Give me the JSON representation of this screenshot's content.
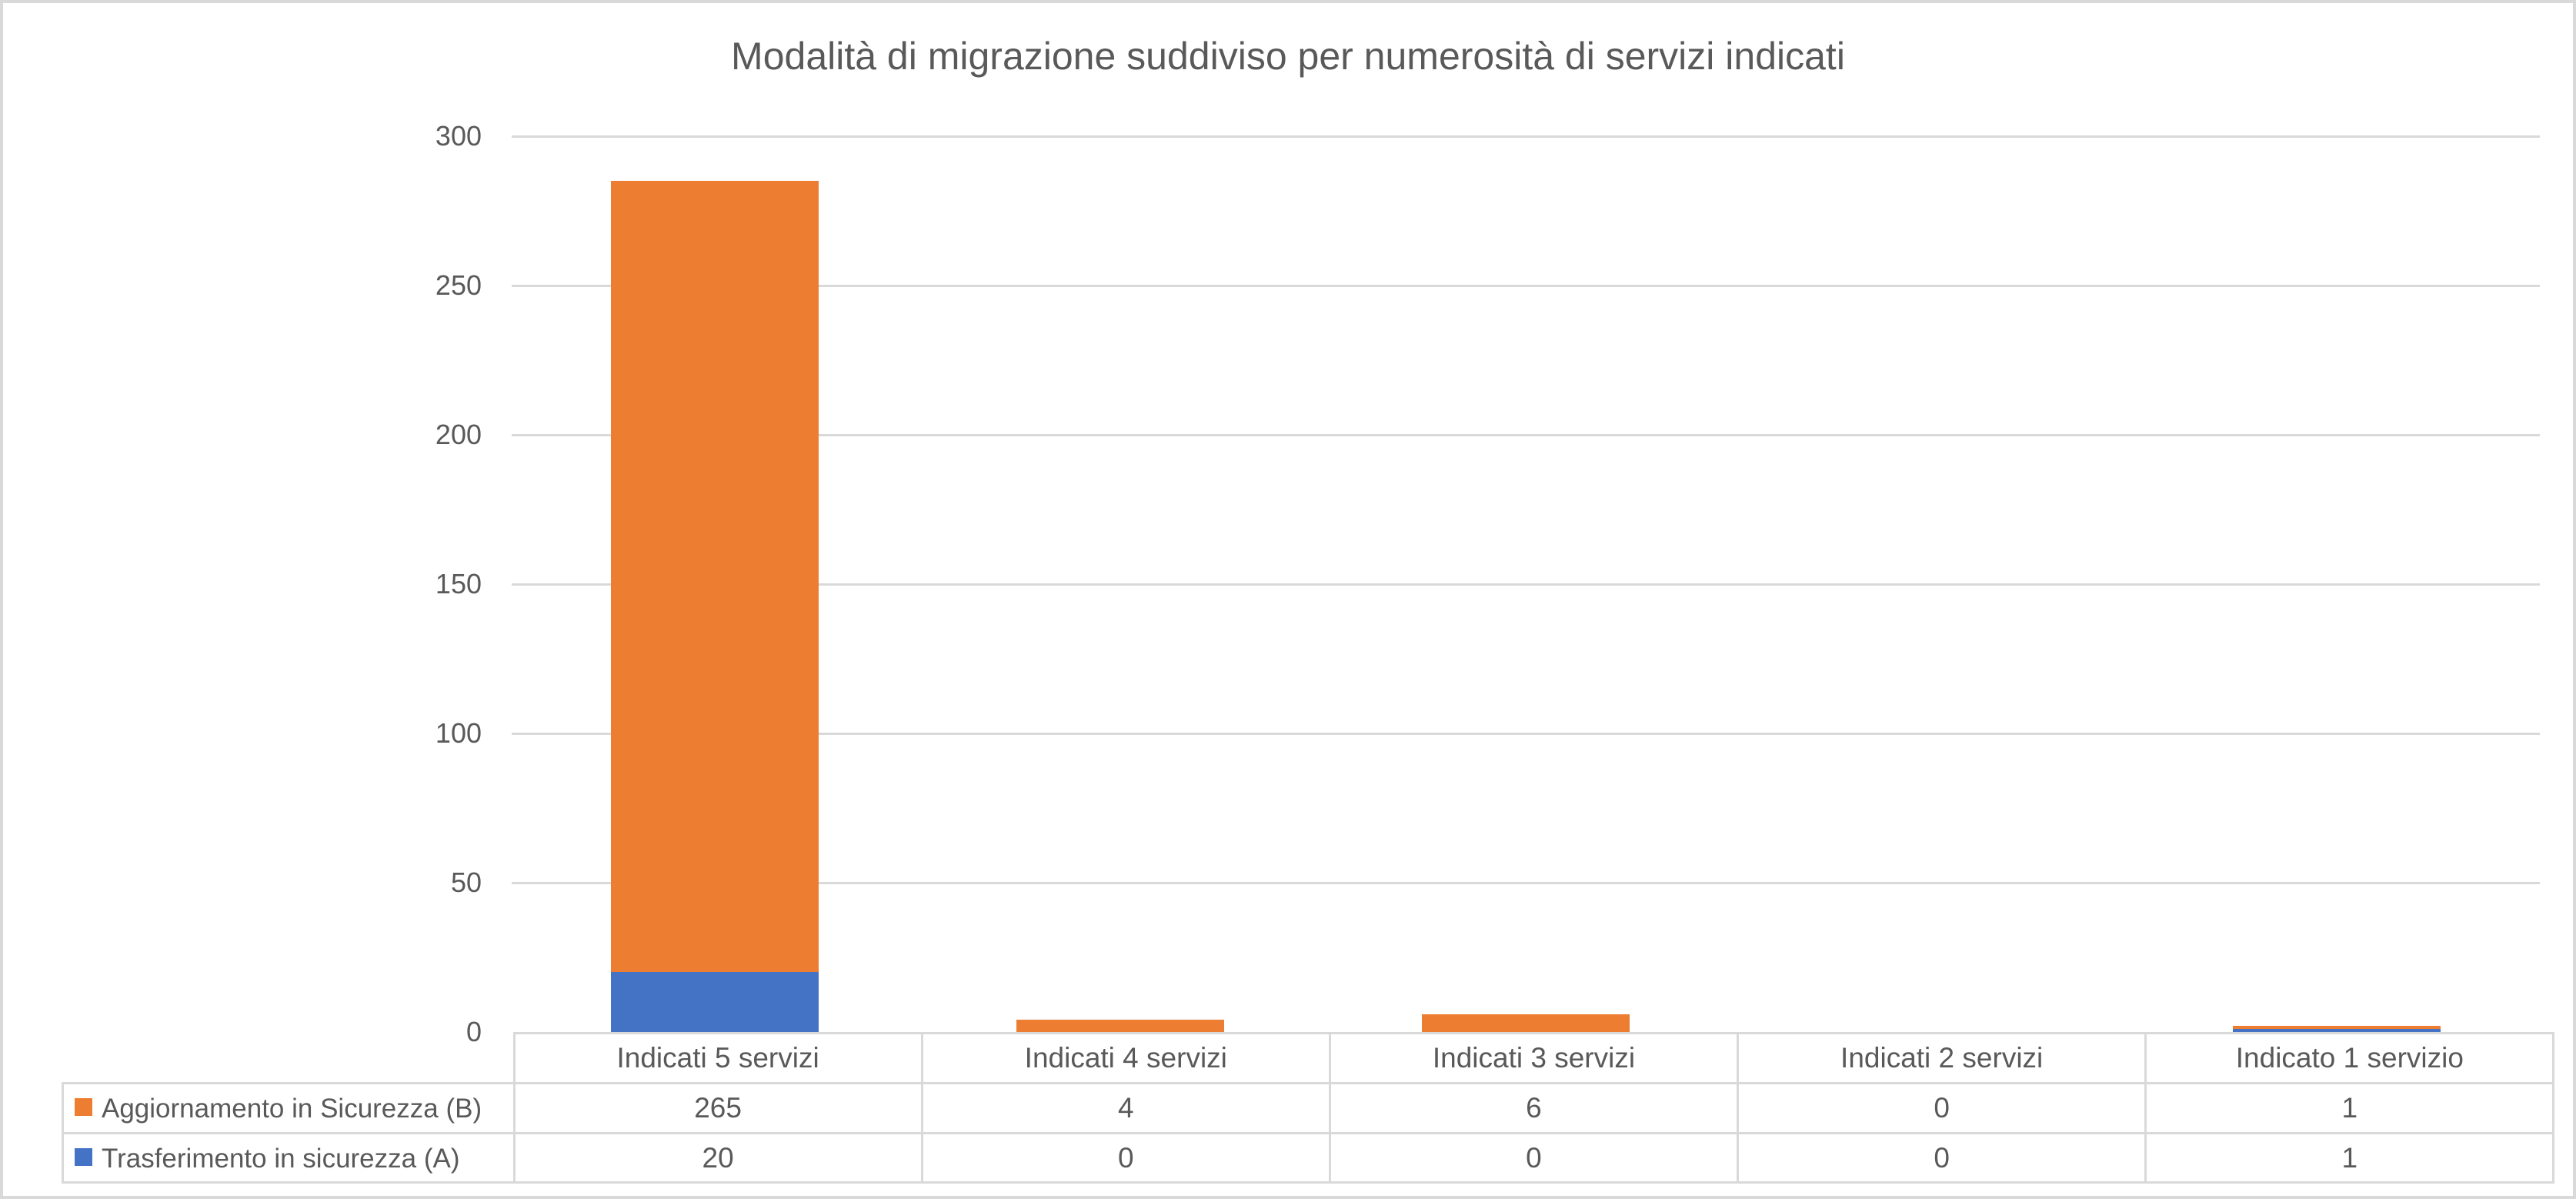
{
  "title": "Modalità di migrazione suddiviso per numerosità di servizi indicati",
  "colors": {
    "series_orange": "#ED7D31",
    "series_blue": "#4472C4",
    "gridline": "#D9D9D9",
    "table_border": "#D9D9D9",
    "text": "#595959",
    "frame_border": "#D9D9D9",
    "background": "#FFFFFF"
  },
  "chart_data": {
    "type": "bar",
    "stacked": true,
    "title": "Modalità di migrazione suddiviso per numerosità di servizi indicati",
    "categories": [
      "Indicati 5 servizi",
      "Indicati 4 servizi",
      "Indicati 3 servizi",
      "Indicati 2 servizi",
      "Indicato 1 servizio"
    ],
    "series": [
      {
        "name": "Aggiornamento in Sicurezza (B)",
        "color": "#ED7D31",
        "values": [
          265,
          4,
          6,
          0,
          1
        ]
      },
      {
        "name": "Trasferimento in sicurezza (A)",
        "color": "#4472C4",
        "values": [
          20,
          0,
          0,
          0,
          1
        ]
      }
    ],
    "stack_order_bottom_to_top": [
      "Trasferimento in sicurezza (A)",
      "Aggiornamento in Sicurezza (B)"
    ],
    "xlabel": "",
    "ylabel": "",
    "ylim": [
      0,
      300
    ],
    "yticks": [
      0,
      50,
      100,
      150,
      200,
      250,
      300
    ],
    "grid": true,
    "legend_position": "data-table-left",
    "data_table_shown": true
  }
}
